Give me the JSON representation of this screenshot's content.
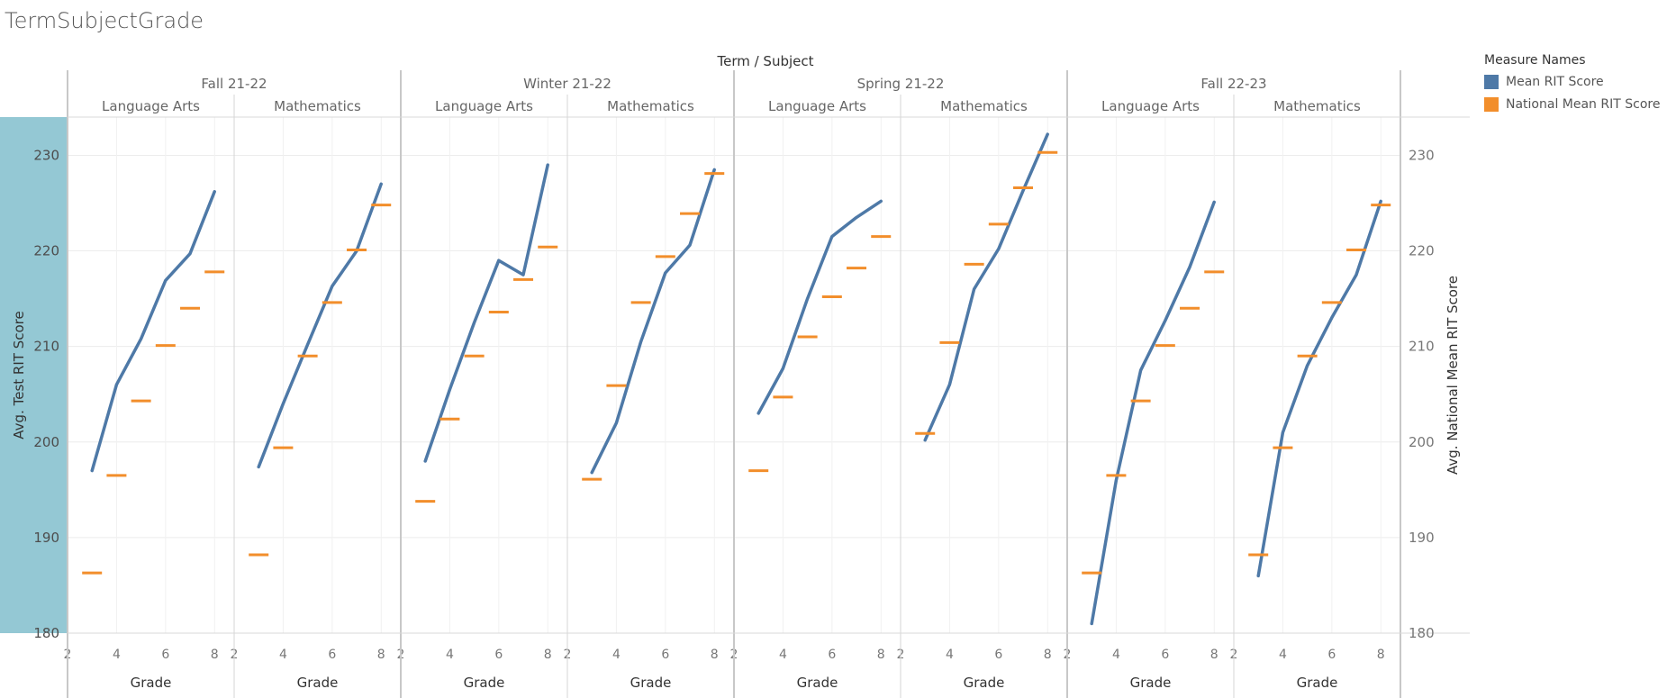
{
  "page": {
    "sheet_title": "TermSubjectGrade"
  },
  "legend": {
    "title": "Measure Names",
    "items": [
      {
        "label": "Mean RIT Score",
        "color": "#4E79A7"
      },
      {
        "label": "National Mean RIT Score",
        "color": "#F28E2B"
      }
    ]
  },
  "chart_data": {
    "type": "line",
    "title": "",
    "column_header_title": "Term / Subject",
    "xlabel": "Grade",
    "ylabel_left": "Avg. Test RIT Score",
    "ylabel_right": "Avg. National Mean RIT Score",
    "ylim": [
      180,
      234
    ],
    "y_ticks": [
      180,
      190,
      200,
      210,
      220,
      230
    ],
    "x_range": [
      2,
      8.8
    ],
    "x_ticks": [
      2,
      4,
      6,
      8
    ],
    "grid": true,
    "legend_position": "top-right",
    "series_colors": {
      "mean": "#4E79A7",
      "national": "#F28E2B"
    },
    "terms": [
      {
        "term": "Fall 21-22",
        "subjects": [
          {
            "subject": "Language Arts",
            "mean_rit": [
              [
                3,
                197
              ],
              [
                4,
                206
              ],
              [
                5,
                210.8
              ],
              [
                6,
                216.9
              ],
              [
                7,
                219.7
              ],
              [
                8,
                226.2
              ]
            ],
            "national_mean": [
              [
                3,
                186.3
              ],
              [
                4,
                196.5
              ],
              [
                5,
                204.3
              ],
              [
                6,
                210.1
              ],
              [
                7,
                214
              ],
              [
                8,
                217.8
              ]
            ]
          },
          {
            "subject": "Mathematics",
            "mean_rit": [
              [
                3,
                197.4
              ],
              [
                4,
                204
              ],
              [
                5,
                210.2
              ],
              [
                6,
                216.3
              ],
              [
                7,
                220
              ],
              [
                8,
                227
              ]
            ],
            "national_mean": [
              [
                3,
                188.2
              ],
              [
                4,
                199.4
              ],
              [
                5,
                209
              ],
              [
                6,
                214.6
              ],
              [
                7,
                220.1
              ],
              [
                8,
                224.8
              ]
            ]
          }
        ]
      },
      {
        "term": "Winter 21-22",
        "subjects": [
          {
            "subject": "Language Arts",
            "mean_rit": [
              [
                3,
                198
              ],
              [
                4,
                205.5
              ],
              [
                5,
                212.5
              ],
              [
                6,
                219
              ],
              [
                7,
                217.5
              ],
              [
                8,
                229
              ]
            ],
            "national_mean": [
              [
                3,
                193.8
              ],
              [
                4,
                202.4
              ],
              [
                5,
                209
              ],
              [
                6,
                213.6
              ],
              [
                7,
                217
              ],
              [
                8,
                220.4
              ]
            ]
          },
          {
            "subject": "Mathematics",
            "mean_rit": [
              [
                3,
                196.8
              ],
              [
                4,
                202
              ],
              [
                5,
                210.5
              ],
              [
                6,
                217.7
              ],
              [
                7,
                220.6
              ],
              [
                8,
                228.5
              ]
            ],
            "national_mean": [
              [
                3,
                196.1
              ],
              [
                4,
                205.9
              ],
              [
                5,
                214.6
              ],
              [
                6,
                219.4
              ],
              [
                7,
                223.9
              ],
              [
                8,
                228.1
              ]
            ]
          }
        ]
      },
      {
        "term": "Spring 21-22",
        "subjects": [
          {
            "subject": "Language Arts",
            "mean_rit": [
              [
                3,
                203
              ],
              [
                4,
                207.7
              ],
              [
                5,
                215
              ],
              [
                6,
                221.5
              ],
              [
                7,
                223.5
              ],
              [
                8,
                225.2
              ]
            ],
            "national_mean": [
              [
                3,
                197
              ],
              [
                4,
                204.7
              ],
              [
                5,
                211
              ],
              [
                6,
                215.2
              ],
              [
                7,
                218.2
              ],
              [
                8,
                221.5
              ]
            ]
          },
          {
            "subject": "Mathematics",
            "mean_rit": [
              [
                3,
                200.2
              ],
              [
                4,
                206
              ],
              [
                5,
                216
              ],
              [
                6,
                220.2
              ],
              [
                7,
                226.3
              ],
              [
                8,
                232.2
              ]
            ],
            "national_mean": [
              [
                3,
                200.9
              ],
              [
                4,
                210.4
              ],
              [
                5,
                218.6
              ],
              [
                6,
                222.8
              ],
              [
                7,
                226.6
              ],
              [
                8,
                230.3
              ]
            ]
          }
        ]
      },
      {
        "term": "Fall 22-23",
        "subjects": [
          {
            "subject": "Language Arts",
            "mean_rit": [
              [
                3,
                181
              ],
              [
                4,
                196
              ],
              [
                5,
                207.5
              ],
              [
                6,
                212.7
              ],
              [
                7,
                218.3
              ],
              [
                8,
                225.1
              ]
            ],
            "national_mean": [
              [
                3,
                186.3
              ],
              [
                4,
                196.5
              ],
              [
                5,
                204.3
              ],
              [
                6,
                210.1
              ],
              [
                7,
                214
              ],
              [
                8,
                217.8
              ]
            ]
          },
          {
            "subject": "Mathematics",
            "mean_rit": [
              [
                3,
                186
              ],
              [
                4,
                201
              ],
              [
                5,
                208
              ],
              [
                6,
                213
              ],
              [
                7,
                217.5
              ],
              [
                8,
                225.2
              ]
            ],
            "national_mean": [
              [
                3,
                188.2
              ],
              [
                4,
                199.4
              ],
              [
                5,
                209
              ],
              [
                6,
                214.6
              ],
              [
                7,
                220.1
              ],
              [
                8,
                224.8
              ]
            ]
          }
        ]
      }
    ]
  }
}
